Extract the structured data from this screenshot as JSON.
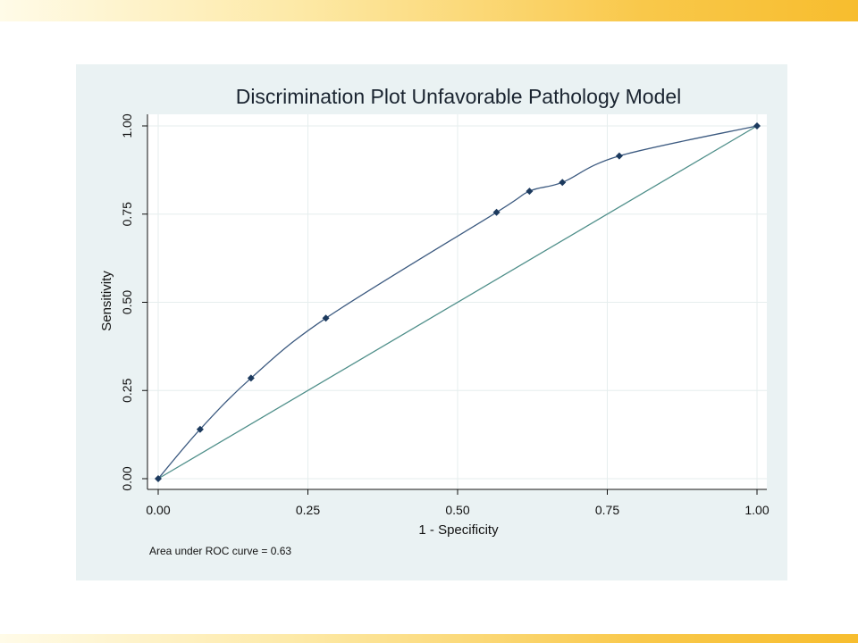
{
  "chart_data": {
    "type": "line",
    "title": "Discrimination Plot Unfavorable Pathology Model",
    "xlabel": "1 - Specificity",
    "ylabel": "Sensitivity",
    "xlim": [
      0,
      1
    ],
    "ylim": [
      0,
      1
    ],
    "xticks": [
      "0.00",
      "0.25",
      "0.50",
      "0.75",
      "1.00"
    ],
    "yticks": [
      "0.00",
      "0.25",
      "0.50",
      "0.75",
      "1.00"
    ],
    "grid": true,
    "note": "Area under ROC curve = 0.63",
    "series": [
      {
        "x": [
          0.0,
          0.07,
          0.155,
          0.28,
          0.565,
          0.62,
          0.675,
          0.77,
          1.0
        ],
        "y": [
          0.0,
          0.14,
          0.285,
          0.455,
          0.755,
          0.815,
          0.84,
          0.915,
          1.0
        ],
        "color": "#3c5a80",
        "marker": "diamond"
      },
      {
        "x": [
          0,
          1
        ],
        "y": [
          0,
          1
        ],
        "color": "#4f8f8a",
        "marker": "none"
      }
    ]
  },
  "colors": {
    "panel_bg": "#eaf2f3",
    "plot_bg": "#ffffff",
    "grid": "#e6eeee",
    "marker": "#1c3a5e"
  }
}
